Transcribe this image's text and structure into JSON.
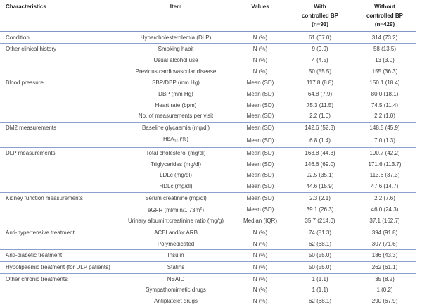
{
  "colors": {
    "rule": "#7e95c5",
    "rule_thin": "#8ba1cc",
    "text": "#3f3f3f",
    "header_text": "#1f1f1f"
  },
  "header": {
    "characteristics": "Characteristics",
    "item": "Item",
    "values": "Values",
    "with_bp": "With\ncontrolled BP\n(n=91)",
    "without_bp": "Without\ncontrolled BP\n(n=429)"
  },
  "sections": [
    {
      "characteristic": "Condition",
      "rows": [
        {
          "item": "Hypercholesterolemia (DLP)",
          "values": "N (%)",
          "with": "61 (67.0)",
          "without": "314 (73.2)"
        }
      ]
    },
    {
      "characteristic": "Other clinical history",
      "rows": [
        {
          "item": "Smoking habit",
          "values": "N (%)",
          "with": "9 (9.9)",
          "without": "58 (13.5)"
        },
        {
          "item": "Usual alcohol use",
          "values": "N (%)",
          "with": "4 (4.5)",
          "without": "13 (3.0)"
        },
        {
          "item": "Previous cardiovascular disease",
          "values": "N (%)",
          "with": "50 (55.5)",
          "without": "155 (36.3)"
        }
      ]
    },
    {
      "characteristic": "Blood pressure",
      "rows": [
        {
          "item": "SBP/DBP (mm Hg)",
          "values": "Mean (SD)",
          "with": "117.8 (8.8)",
          "without": "150.1 (18.4)"
        },
        {
          "item": "DBP (mm Hg)",
          "values": "Mean (SD)",
          "with": "64.8 (7.9)",
          "without": "80.0 (18.1)"
        },
        {
          "item": "Heart rate (bpm)",
          "values": "Mean (SD)",
          "with": "75.3 (11.5)",
          "without": "74.5 (11.4)"
        },
        {
          "item": "No. of measurements per visit",
          "values": "Mean (SD)",
          "with": "2.2 (1.0)",
          "without": "2.2 (1.0)"
        }
      ]
    },
    {
      "characteristic": "DM2 measurements",
      "rows": [
        {
          "item": "Baseline glycaemia (mg/dl)",
          "values": "Mean (SD)",
          "with": "142.6 (52.3)",
          "without": "148.5 (45.9)"
        },
        {
          "item_parts": [
            {
              "t": "HbA"
            },
            {
              "t": "1c",
              "sub": true
            },
            {
              "t": " (%)"
            }
          ],
          "values": "Mean (SD)",
          "with": "6.8 (1.4)",
          "without": "7.0 (1.3)"
        }
      ]
    },
    {
      "characteristic": "DLP measurements",
      "rows": [
        {
          "item": "Total cholesterol (mg/dl)",
          "values": "Mean (SD)",
          "with": "163.8 (44.3)",
          "without": "190.7 (42.2)"
        },
        {
          "item": "Triglycerides (mg/dl)",
          "values": "Mean (SD)",
          "with": "146.6 (69.0)",
          "without": "171.6 (113.7)"
        },
        {
          "item": "LDLc (mg/dl)",
          "values": "Mean (SD)",
          "with": "92.5 (35.1)",
          "without": "113.6 (37.3)"
        },
        {
          "item": "HDLc (mg/dl)",
          "values": "Mean (SD)",
          "with": "44.6 (15.9)",
          "without": "47.6 (14.7)"
        }
      ]
    },
    {
      "characteristic": "Kidney function measurements",
      "rows": [
        {
          "item": "Serum creatinine (mg/dl)",
          "values": "Mean (SD)",
          "with": "2.3 (2.1)",
          "without": "2.2 (7.6)"
        },
        {
          "item_parts": [
            {
              "t": "eGFR (ml/min/1.73m"
            },
            {
              "t": "2",
              "sup": true
            },
            {
              "t": ")"
            }
          ],
          "values": "Mean (SD)",
          "with": "39.1 (26.3)",
          "without": "46.0 (24.3)"
        },
        {
          "item": "Urinary albumin:creatinine ratio (mg/g)",
          "values": "Median (IQR)",
          "with": "35.7 (214.0)",
          "without": "37.1 (162.7)"
        }
      ]
    },
    {
      "characteristic": "Anti-hypertensive treatment",
      "rows": [
        {
          "item": "ACEI and/or ARB",
          "values": "N (%)",
          "with": "74 (81.3)",
          "without": "394 (91.8)"
        },
        {
          "item": "Polymedicated",
          "values": "N (%)",
          "with": "62 (68.1)",
          "without": "307 (71.6)"
        }
      ]
    },
    {
      "characteristic": "Anti-diabetic treatment",
      "rows": [
        {
          "item": "Insulin",
          "values": "N (%)",
          "with": "50 (55.0)",
          "without": "186 (43.3)"
        }
      ]
    },
    {
      "characteristic": "Hypolipaemic treatment (for DLP patients)",
      "rows": [
        {
          "item": "Statins",
          "values": "N (%)",
          "with": "50 (55.0)",
          "without": "262 (61.1)"
        }
      ]
    },
    {
      "characteristic": "Other chronic treatments",
      "rows": [
        {
          "item": "NSAID",
          "values": "N (%)",
          "with": "1 (1.1)",
          "without": "35 (8.2)"
        },
        {
          "item": "Sympathomimetic drugs",
          "values": "N (%)",
          "with": "1 (1.1)",
          "without": "1 (0.2)"
        },
        {
          "item": "Antiplatelet drugs",
          "values": "N (%)",
          "with": "62 (68.1)",
          "without": "290 (67.9)"
        }
      ]
    }
  ]
}
